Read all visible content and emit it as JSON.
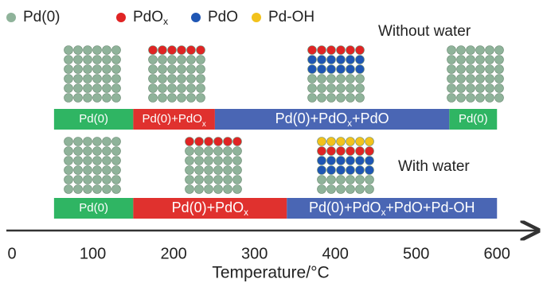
{
  "legend": [
    {
      "parts": [
        {
          "text": "Pd(0)"
        }
      ],
      "color": "#8fb39a"
    },
    {
      "parts": [
        {
          "text": "PdO"
        },
        {
          "sub": "x"
        }
      ],
      "color": "#e02424"
    },
    {
      "parts": [
        {
          "text": "PdO"
        }
      ],
      "color": "#1f56b4"
    },
    {
      "parts": [
        {
          "text": "Pd-OH"
        }
      ],
      "color": "#f2c21c"
    }
  ],
  "rows": [
    {
      "title": "Without water",
      "segments": [
        {
          "parts": [
            {
              "text": "Pd(0)"
            }
          ],
          "from": 52,
          "to": 150,
          "color": "#2fb563"
        },
        {
          "parts": [
            {
              "text": "Pd(0)+PdO"
            },
            {
              "sub": "x"
            }
          ],
          "from": 150,
          "to": 251,
          "color": "#e0312e"
        },
        {
          "parts": [
            {
              "text": "Pd(0)+PdO"
            },
            {
              "sub": "x"
            },
            {
              "text": "+PdO"
            }
          ],
          "from": 251,
          "to": 541,
          "color": "#4a66b4"
        },
        {
          "parts": [
            {
              "text": "Pd(0)"
            }
          ],
          "from": 541,
          "to": 600,
          "color": "#2fb563"
        }
      ]
    },
    {
      "title": "With water",
      "segments": [
        {
          "parts": [
            {
              "text": "Pd(0)"
            }
          ],
          "from": 52,
          "to": 150,
          "color": "#2fb563"
        },
        {
          "parts": [
            {
              "text": "Pd(0)+PdO"
            },
            {
              "sub": "x"
            }
          ],
          "from": 150,
          "to": 340,
          "color": "#e0312e"
        },
        {
          "parts": [
            {
              "text": "Pd(0)+PdO"
            },
            {
              "sub": "x"
            },
            {
              "text": "+PdO+Pd-OH"
            }
          ],
          "from": 340,
          "to": 600,
          "color": "#4a66b4"
        }
      ]
    }
  ],
  "axis": {
    "label": "Temperature/°C",
    "lim": [
      -5,
      650
    ],
    "ticks": [
      0,
      100,
      200,
      300,
      400,
      500,
      600
    ]
  }
}
